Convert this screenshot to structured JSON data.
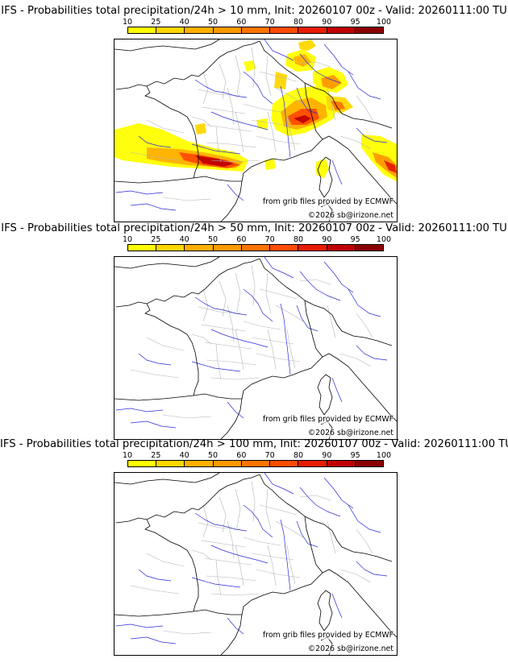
{
  "colorbar": {
    "ticks": [
      "10",
      "25",
      "40",
      "50",
      "60",
      "70",
      "80",
      "90",
      "95",
      "100"
    ],
    "colors": [
      "#ffff00",
      "#ffd700",
      "#ffb000",
      "#ff9900",
      "#ff7400",
      "#ff4c00",
      "#e81c00",
      "#c00000",
      "#8b0000",
      "#5a0000"
    ]
  },
  "panels": [
    {
      "title": "IFS - Probabilities total precipitation/24h > 10 mm, Init: 20260107 00z - Valid: 20260111:00 TU",
      "show_precip": true
    },
    {
      "title": "IFS - Probabilities total precipitation/24h > 50 mm, Init: 20260107 00z - Valid: 20260111:00 TU",
      "show_precip": false
    },
    {
      "title": "IFS - Probabilities total precipitation/24h > 100 mm, Init: 20260107 00z - Valid: 20260111:00 TU",
      "show_precip": false
    }
  ],
  "credits": {
    "source": "from grib files provided by ECMWF",
    "copyright": "©2026 sb@irizone.net"
  },
  "map_colors": {
    "coast": "#000000",
    "rivers": "#2b2bd8",
    "departments": "#b4b4b4"
  }
}
